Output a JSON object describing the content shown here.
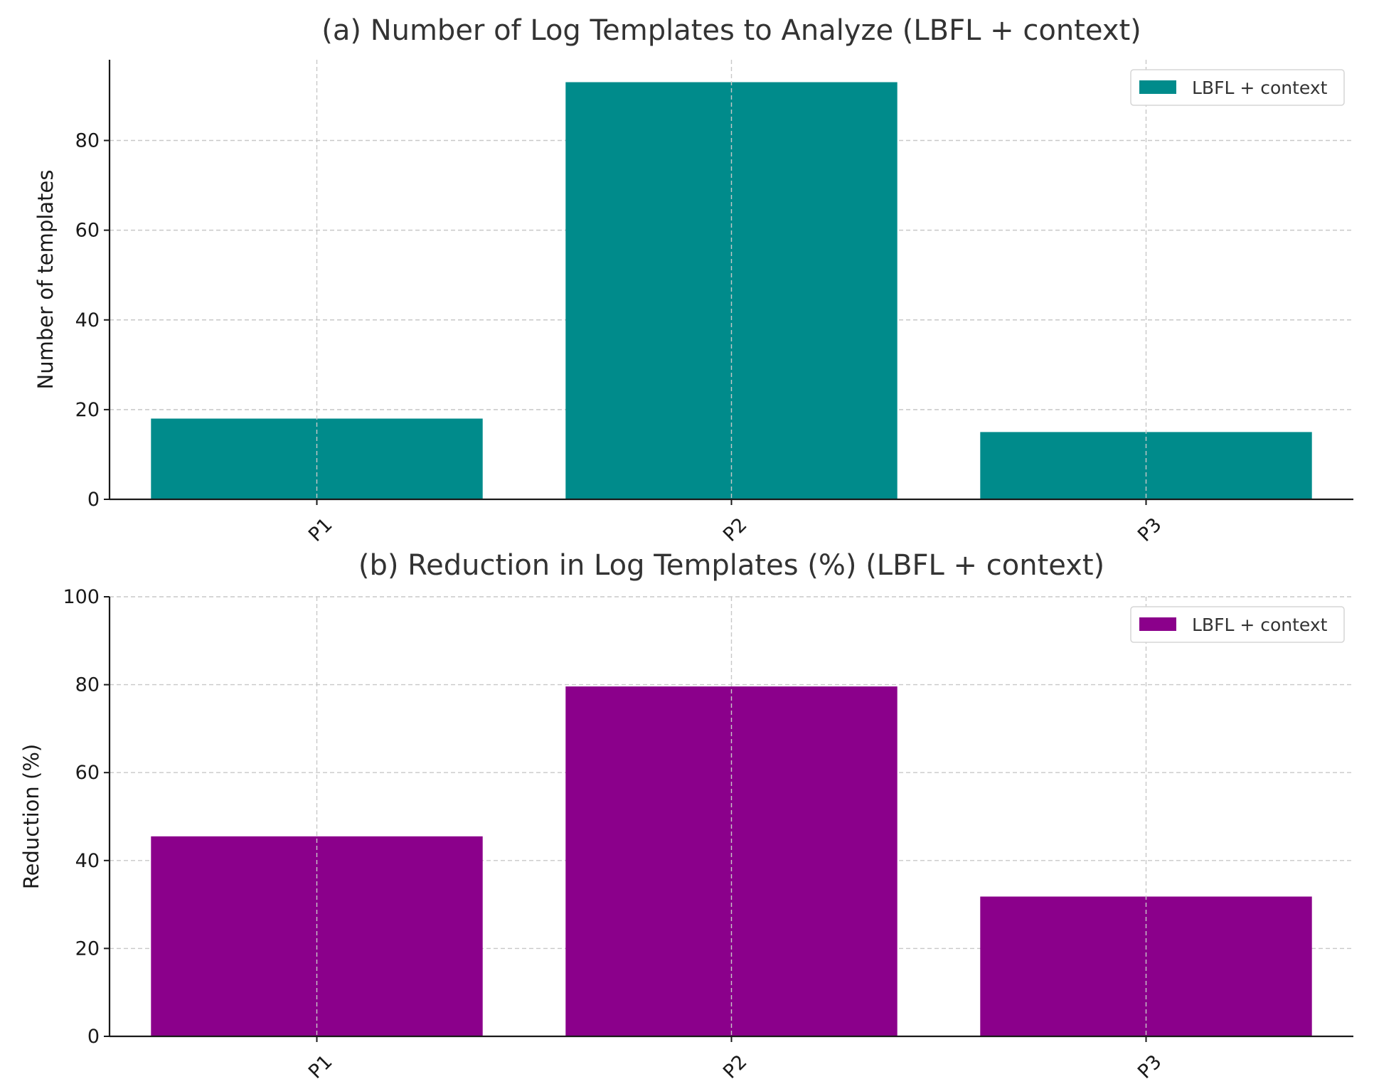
{
  "chart_data": [
    {
      "type": "bar",
      "title": "(a) Number of Log Templates to Analyze (LBFL + context)",
      "xlabel": "",
      "ylabel": "Number of templates",
      "categories": [
        "P1",
        "P2",
        "P3"
      ],
      "series": [
        {
          "name": "LBFL + context",
          "values": [
            18,
            93,
            15
          ]
        }
      ],
      "ylim": [
        0,
        98
      ],
      "yticks": [
        0,
        20,
        40,
        60,
        80
      ],
      "grid": true,
      "legend": "top-right",
      "color": "#008B8B"
    },
    {
      "type": "bar",
      "title": "(b) Reduction in Log Templates (%) (LBFL + context)",
      "xlabel": "",
      "ylabel": "Reduction (%)",
      "categories": [
        "P1",
        "P2",
        "P3"
      ],
      "series": [
        {
          "name": "LBFL + context",
          "values": [
            45.5,
            79.6,
            31.8
          ]
        }
      ],
      "ylim": [
        0,
        100
      ],
      "yticks": [
        0,
        20,
        40,
        60,
        80,
        100
      ],
      "grid": true,
      "legend": "top-right",
      "color": "#8B008B"
    }
  ]
}
